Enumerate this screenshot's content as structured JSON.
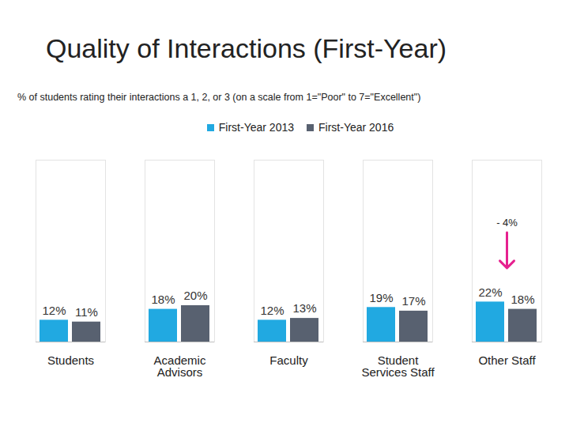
{
  "chart_data": {
    "type": "bar",
    "title": "Quality of Interactions (First-Year)",
    "subtitle": "% of students rating their interactions a 1, 2, or 3  (on a scale from 1=\"Poor\" to 7=\"Excellent\")",
    "categories": [
      "Students",
      "Academic Advisors",
      "Faculty",
      "Student Services Staff",
      "Other Staff"
    ],
    "series": [
      {
        "name": "First-Year 2013",
        "color": "#21a9e1",
        "values": [
          12,
          18,
          12,
          19,
          22
        ],
        "value_labels": [
          "12%",
          "18%",
          "12%",
          "19%",
          "22%"
        ]
      },
      {
        "name": "First-Year 2016",
        "color": "#586170",
        "values": [
          11,
          20,
          13,
          17,
          18
        ],
        "value_labels": [
          "11%",
          "20%",
          "13%",
          "17%",
          "18%"
        ]
      }
    ],
    "ylim": [
      0,
      100
    ],
    "yticks": [
      0,
      100
    ],
    "tick_labels": "x",
    "data_labels": true,
    "legend": "top",
    "annotations": [
      {
        "text": "- 4%",
        "category": "Other Staff",
        "color": "#e6218f"
      }
    ]
  }
}
